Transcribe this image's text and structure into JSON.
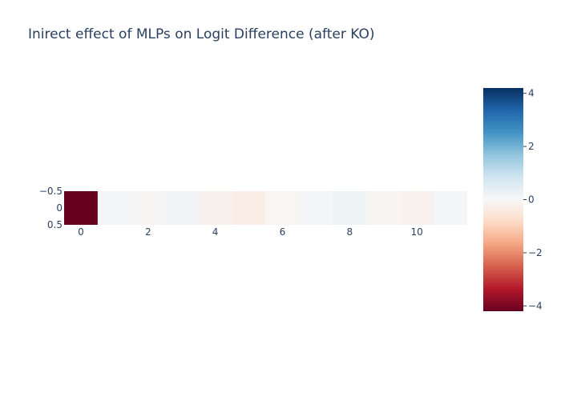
{
  "chart_data": {
    "type": "heatmap",
    "title": "Inirect effect of MLPs on Logit Difference (after KO)",
    "x": [
      0,
      1,
      2,
      3,
      4,
      5,
      6,
      7,
      8,
      9,
      10,
      11
    ],
    "y": [
      0
    ],
    "z": [
      [
        -4.2,
        0.08,
        -0.05,
        0.15,
        -0.2,
        -0.3,
        -0.04,
        0.08,
        0.22,
        -0.05,
        -0.18,
        0.08
      ]
    ],
    "x_tick_labels": [
      "0",
      "2",
      "4",
      "6",
      "8",
      "10"
    ],
    "x_tick_values": [
      0,
      2,
      4,
      6,
      8,
      10
    ],
    "y_tick_labels": [
      "−0.5",
      "0",
      "0.5"
    ],
    "y_tick_values": [
      -0.5,
      0,
      0.5
    ],
    "xlabel": "",
    "ylabel": "",
    "xlim": [
      -0.5,
      11.5
    ],
    "ylim": [
      -0.5,
      0.5
    ],
    "colorscale": "RdBu",
    "zmin": -4.2,
    "zmax": 4.2,
    "colorbar_tick_labels": [
      "4",
      "2",
      "0",
      "−2",
      "−4"
    ],
    "colorbar_tick_values": [
      4,
      2,
      0,
      -2,
      -4
    ],
    "colors": {
      "title": "#2a3f5f",
      "tick": "#2a3f5f",
      "scale": [
        "#67001f",
        "#b2182b",
        "#d6604d",
        "#f4a582",
        "#fddbc7",
        "#f7f7f7",
        "#d1e5f0",
        "#92c5de",
        "#4393c3",
        "#2166ac",
        "#053061"
      ]
    }
  }
}
